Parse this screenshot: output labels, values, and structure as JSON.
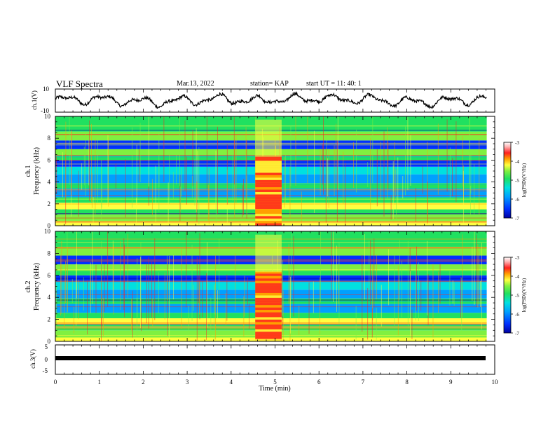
{
  "header": {
    "title": "VLF Spectra",
    "date": "Mar.13, 2022",
    "station": "station= KAP",
    "start_ut": "start  UT =   11: 40: 1"
  },
  "colors": {
    "colormap": [
      "#0000a0",
      "#0030ff",
      "#00a0ff",
      "#00e0e0",
      "#20e060",
      "#80f040",
      "#ffff40",
      "#ffa000",
      "#ff2020",
      "#ffb0b0",
      "#ffffff"
    ],
    "trace": "#000000"
  },
  "chart_data": [
    {
      "type": "line",
      "panel": "ch1-waveform",
      "ylabel": "ch.1(V)",
      "ylim": [
        -10,
        10
      ],
      "yticks": [
        "10",
        "-10"
      ],
      "x_range_min": [
        0,
        9.82
      ],
      "description_values": "continuous waveform, approx. -5 to 5 V, slow oscillation"
    },
    {
      "type": "heatmap",
      "panel": "ch1-spectrogram",
      "ylabel": "ch.1\nFrequency  (kHz)",
      "xlim": [
        0,
        10
      ],
      "ylim": [
        0,
        10
      ],
      "yticks": [
        "0",
        "2",
        "4",
        "6",
        "8",
        "10"
      ],
      "colorbar": {
        "label": "log(PSD)(V²/Hz)",
        "range": [
          -7,
          -3
        ],
        "ticks": [
          "-3",
          "-4",
          "-5",
          "-6",
          "-7"
        ]
      },
      "data_extent_min": [
        0,
        9.82
      ],
      "enhanced_interval_min": [
        4.55,
        5.15
      ]
    },
    {
      "type": "heatmap",
      "panel": "ch2-spectrogram",
      "ylabel": "ch.2\nFrequency  (kHz)",
      "xlim": [
        0,
        10
      ],
      "ylim": [
        0,
        10
      ],
      "yticks": [
        "0",
        "2",
        "4",
        "6",
        "8",
        "10"
      ],
      "colorbar": {
        "label": "log(PSD)(V²/Hz)",
        "range": [
          -7,
          -3
        ],
        "ticks": [
          "-3",
          "-4",
          "-5",
          "-6",
          "-7"
        ]
      },
      "data_extent_min": [
        0,
        9.82
      ],
      "enhanced_interval_min": [
        4.55,
        5.15
      ]
    },
    {
      "type": "line",
      "panel": "ch3-waveform",
      "ylabel": "ch.3(V)",
      "ylim": [
        -5,
        5
      ],
      "yticks": [
        "5",
        "0",
        "-5"
      ],
      "constant_value": 0
    }
  ],
  "xaxis": {
    "label": "Time  (min)",
    "ticks": [
      "0",
      "1",
      "2",
      "3",
      "4",
      "5",
      "6",
      "7",
      "8",
      "9",
      "10"
    ],
    "range": [
      0,
      10
    ]
  }
}
